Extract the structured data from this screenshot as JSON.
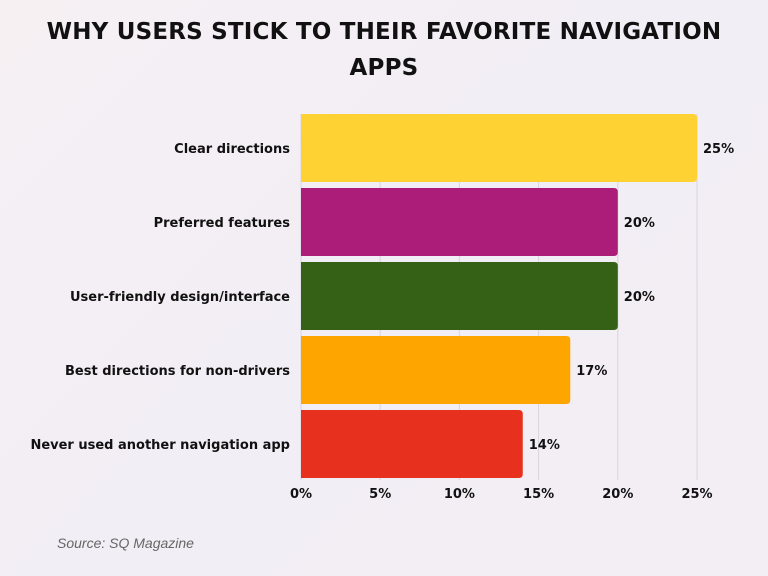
{
  "chart_data": {
    "type": "bar",
    "orientation": "horizontal",
    "title": "WHY USERS STICK TO THEIR FAVORITE NAVIGATION APPS",
    "categories": [
      "Clear directions",
      "Preferred features",
      "User-friendly design/interface",
      "Best directions for non-drivers",
      "Never used another navigation app"
    ],
    "values": [
      25,
      20,
      20,
      17,
      14
    ],
    "value_labels": [
      "25%",
      "20%",
      "20%",
      "17%",
      "14%"
    ],
    "colors": [
      "#ffd234",
      "#ab1d79",
      "#346116",
      "#fea500",
      "#e8301f"
    ],
    "xlim": [
      0,
      25
    ],
    "xticks": [
      0,
      5,
      10,
      15,
      20,
      25
    ],
    "xtick_labels": [
      "0%",
      "5%",
      "10%",
      "15%",
      "20%",
      "25%"
    ],
    "grid": "vertical",
    "xlabel": "",
    "ylabel": ""
  },
  "source": "Source: SQ Magazine"
}
